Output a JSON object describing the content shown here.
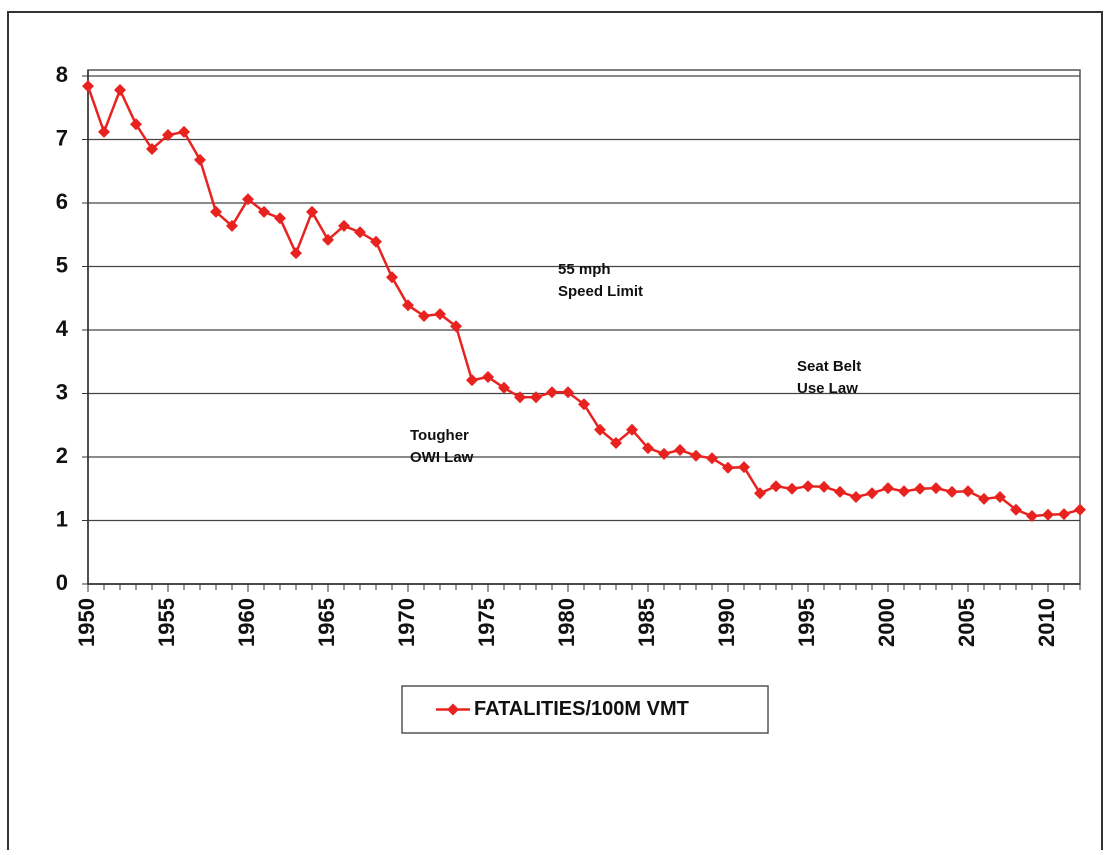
{
  "chart_data": {
    "type": "line",
    "x": [
      1950,
      1951,
      1952,
      1953,
      1954,
      1955,
      1956,
      1957,
      1958,
      1959,
      1960,
      1961,
      1962,
      1963,
      1964,
      1965,
      1966,
      1967,
      1968,
      1969,
      1970,
      1971,
      1972,
      1973,
      1974,
      1975,
      1976,
      1977,
      1978,
      1979,
      1980,
      1981,
      1982,
      1983,
      1984,
      1985,
      1986,
      1987,
      1988,
      1989,
      1990,
      1991,
      1992,
      1993,
      1994,
      1995,
      1996,
      1997,
      1998,
      1999,
      2000,
      2001,
      2002,
      2003,
      2004,
      2005,
      2006,
      2007,
      2008,
      2009,
      2010,
      2011,
      2012
    ],
    "series": [
      {
        "name": "FATALITIES/100M VMT",
        "color": "#e8231f",
        "values": [
          7.84,
          7.12,
          7.78,
          7.24,
          6.85,
          7.07,
          7.12,
          6.68,
          5.86,
          5.64,
          6.06,
          5.86,
          5.76,
          5.21,
          5.86,
          5.42,
          5.64,
          5.54,
          5.39,
          4.83,
          4.39,
          4.22,
          4.25,
          4.06,
          3.21,
          3.26,
          3.09,
          2.94,
          2.94,
          3.02,
          3.02,
          2.83,
          2.43,
          2.22,
          2.43,
          2.14,
          2.05,
          2.11,
          2.02,
          1.98,
          1.83,
          1.84,
          1.43,
          1.54,
          1.5,
          1.54,
          1.53,
          1.45,
          1.37,
          1.43,
          1.51,
          1.46,
          1.5,
          1.51,
          1.45,
          1.46,
          1.34,
          1.37,
          1.17,
          1.07,
          1.09,
          1.1,
          1.17
        ]
      }
    ],
    "xlim": [
      1950,
      2012
    ],
    "xticks": [
      1950,
      1955,
      1960,
      1965,
      1970,
      1975,
      1980,
      1985,
      1990,
      1995,
      2000,
      2005,
      2010
    ],
    "ylim": [
      0,
      8
    ],
    "yticks": [
      0,
      1,
      2,
      3,
      4,
      5,
      6,
      7,
      8
    ],
    "grid": true,
    "legend": "bottom",
    "annotations": [
      {
        "lines": [
          "55 mph",
          "Speed Limit"
        ]
      },
      {
        "lines": [
          "Tougher",
          "OWI Law"
        ]
      },
      {
        "lines": [
          "Seat Belt",
          "Use Law"
        ]
      }
    ]
  }
}
